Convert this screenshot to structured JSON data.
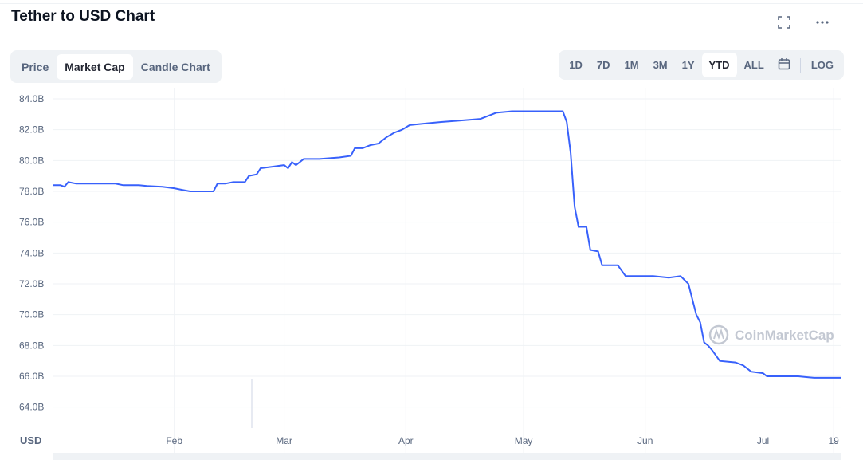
{
  "header": {
    "title": "Tether to USD Chart",
    "icons": [
      "fullscreen-icon",
      "more-icon"
    ]
  },
  "view_tabs": [
    {
      "label": "Price",
      "active": false
    },
    {
      "label": "Market Cap",
      "active": true
    },
    {
      "label": "Candle Chart",
      "active": false
    }
  ],
  "range_tabs": [
    {
      "label": "1D",
      "active": false
    },
    {
      "label": "7D",
      "active": false
    },
    {
      "label": "1M",
      "active": false
    },
    {
      "label": "3M",
      "active": false
    },
    {
      "label": "1Y",
      "active": false
    },
    {
      "label": "YTD",
      "active": true
    },
    {
      "label": "ALL",
      "active": false
    }
  ],
  "log_label": "LOG",
  "watermark": "CoinMarketCap",
  "colors": {
    "line": "#3861fb",
    "grid": "#eff2f5",
    "text": "#58667e",
    "watermark": "#c3c8d2"
  },
  "chart_data": {
    "type": "line",
    "title": "Tether to USD Chart",
    "unit_label": "USD",
    "ylim": [
      63,
      84.5
    ],
    "xlim": [
      "2022-01-01",
      "2022-07-21"
    ],
    "y_ticks": [
      {
        "value": 84,
        "label": "84.0B"
      },
      {
        "value": 82,
        "label": "82.0B"
      },
      {
        "value": 80,
        "label": "80.0B"
      },
      {
        "value": 78,
        "label": "78.0B"
      },
      {
        "value": 76,
        "label": "76.0B"
      },
      {
        "value": 74,
        "label": "74.0B"
      },
      {
        "value": 72,
        "label": "72.0B"
      },
      {
        "value": 70,
        "label": "70.0B"
      },
      {
        "value": 68,
        "label": "68.0B"
      },
      {
        "value": 66,
        "label": "66.0B"
      },
      {
        "value": 64,
        "label": "64.0B"
      }
    ],
    "x_ticks": [
      {
        "date": "2022-02-01",
        "label": "Feb"
      },
      {
        "date": "2022-03-01",
        "label": "Mar"
      },
      {
        "date": "2022-04-01",
        "label": "Apr"
      },
      {
        "date": "2022-05-01",
        "label": "May"
      },
      {
        "date": "2022-06-01",
        "label": "Jun"
      },
      {
        "date": "2022-07-01",
        "label": "Jul"
      },
      {
        "date": "2022-07-19",
        "label": "19"
      }
    ],
    "series": [
      {
        "values": [
          [
            "2022-01-01",
            78.4
          ],
          [
            "2022-01-03",
            78.4
          ],
          [
            "2022-01-04",
            78.3
          ],
          [
            "2022-01-05",
            78.6
          ],
          [
            "2022-01-07",
            78.5
          ],
          [
            "2022-01-11",
            78.5
          ],
          [
            "2022-01-17",
            78.5
          ],
          [
            "2022-01-19",
            78.4
          ],
          [
            "2022-01-23",
            78.4
          ],
          [
            "2022-01-25",
            78.35
          ],
          [
            "2022-01-29",
            78.3
          ],
          [
            "2022-02-01",
            78.2
          ],
          [
            "2022-02-03",
            78.1
          ],
          [
            "2022-02-05",
            78.0
          ],
          [
            "2022-02-08",
            78.0
          ],
          [
            "2022-02-11",
            78.0
          ],
          [
            "2022-02-12",
            78.5
          ],
          [
            "2022-02-14",
            78.5
          ],
          [
            "2022-02-16",
            78.6
          ],
          [
            "2022-02-19",
            78.6
          ],
          [
            "2022-02-20",
            79.0
          ],
          [
            "2022-02-22",
            79.1
          ],
          [
            "2022-02-23",
            79.5
          ],
          [
            "2022-02-26",
            79.6
          ],
          [
            "2022-03-01",
            79.7
          ],
          [
            "2022-03-02",
            79.5
          ],
          [
            "2022-03-03",
            79.9
          ],
          [
            "2022-03-04",
            79.7
          ],
          [
            "2022-03-06",
            80.1
          ],
          [
            "2022-03-10",
            80.1
          ],
          [
            "2022-03-15",
            80.2
          ],
          [
            "2022-03-18",
            80.3
          ],
          [
            "2022-03-19",
            80.8
          ],
          [
            "2022-03-21",
            80.8
          ],
          [
            "2022-03-23",
            81.0
          ],
          [
            "2022-03-25",
            81.1
          ],
          [
            "2022-03-27",
            81.5
          ],
          [
            "2022-03-29",
            81.8
          ],
          [
            "2022-03-31",
            82.0
          ],
          [
            "2022-04-02",
            82.3
          ],
          [
            "2022-04-06",
            82.4
          ],
          [
            "2022-04-10",
            82.5
          ],
          [
            "2022-04-15",
            82.6
          ],
          [
            "2022-04-20",
            82.7
          ],
          [
            "2022-04-22",
            82.9
          ],
          [
            "2022-04-24",
            83.1
          ],
          [
            "2022-04-28",
            83.2
          ],
          [
            "2022-05-05",
            83.2
          ],
          [
            "2022-05-11",
            83.2
          ],
          [
            "2022-05-12",
            82.5
          ],
          [
            "2022-05-13",
            80.5
          ],
          [
            "2022-05-14",
            77.0
          ],
          [
            "2022-05-15",
            75.7
          ],
          [
            "2022-05-17",
            75.7
          ],
          [
            "2022-05-18",
            74.2
          ],
          [
            "2022-05-20",
            74.1
          ],
          [
            "2022-05-21",
            73.2
          ],
          [
            "2022-05-25",
            73.2
          ],
          [
            "2022-05-27",
            72.5
          ],
          [
            "2022-06-03",
            72.5
          ],
          [
            "2022-06-07",
            72.4
          ],
          [
            "2022-06-10",
            72.5
          ],
          [
            "2022-06-12",
            72.0
          ],
          [
            "2022-06-13",
            71.0
          ],
          [
            "2022-06-14",
            70.0
          ],
          [
            "2022-06-15",
            69.5
          ],
          [
            "2022-06-16",
            68.2
          ],
          [
            "2022-06-17",
            68.0
          ],
          [
            "2022-06-18",
            67.7
          ],
          [
            "2022-06-20",
            67.0
          ],
          [
            "2022-06-24",
            66.9
          ],
          [
            "2022-06-26",
            66.7
          ],
          [
            "2022-06-28",
            66.3
          ],
          [
            "2022-07-01",
            66.2
          ],
          [
            "2022-07-02",
            66.0
          ],
          [
            "2022-07-10",
            66.0
          ],
          [
            "2022-07-14",
            65.9
          ],
          [
            "2022-07-21",
            65.9
          ]
        ]
      }
    ]
  }
}
